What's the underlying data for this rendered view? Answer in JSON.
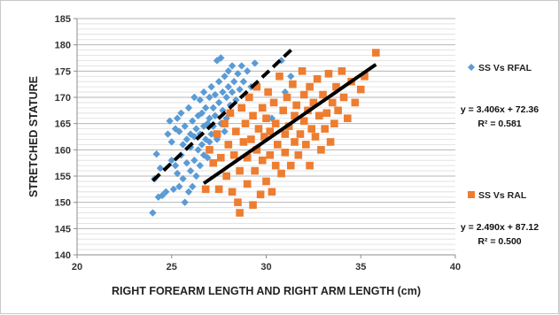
{
  "chart_data": {
    "type": "scatter",
    "xlabel": "RIGHT FOREARM LENGTH AND RIGHT ARM LENGTH (cm)",
    "ylabel": "STRETCHED STATURE",
    "xlim": [
      20,
      40
    ],
    "ylim": [
      140,
      185
    ],
    "x_ticks": [
      "20",
      "25",
      "30",
      "35",
      "40"
    ],
    "y_ticks": [
      "140",
      "145",
      "150",
      "155",
      "160",
      "165",
      "170",
      "175",
      "180",
      "185"
    ],
    "grid": "horizontal",
    "legend_position": "right",
    "series": [
      {
        "name": "SS Vs RFAL",
        "marker": "diamond",
        "color": "#5b9bd5",
        "trendline": {
          "slope": 3.406,
          "intercept": 72.36,
          "x_range": [
            24.0,
            31.5
          ],
          "style": "dashed",
          "color": "#000000"
        },
        "equation_label": "y = 3.406x + 72.36",
        "r2_label": "R² = 0.581",
        "points": [
          [
            24.0,
            148.0
          ],
          [
            24.1,
            154.5
          ],
          [
            24.2,
            159.2
          ],
          [
            24.3,
            151.0
          ],
          [
            24.4,
            156.5
          ],
          [
            24.5,
            151.3
          ],
          [
            24.7,
            152.0
          ],
          [
            24.8,
            163.0
          ],
          [
            24.9,
            165.5
          ],
          [
            25.0,
            158.0
          ],
          [
            25.0,
            161.5
          ],
          [
            25.1,
            152.5
          ],
          [
            25.2,
            164.0
          ],
          [
            25.2,
            157.0
          ],
          [
            25.3,
            166.0
          ],
          [
            25.3,
            155.5
          ],
          [
            25.4,
            153.0
          ],
          [
            25.4,
            163.5
          ],
          [
            25.5,
            159.0
          ],
          [
            25.5,
            167.0
          ],
          [
            25.6,
            154.5
          ],
          [
            25.6,
            161.0
          ],
          [
            25.7,
            150.0
          ],
          [
            25.7,
            164.5
          ],
          [
            25.8,
            157.5
          ],
          [
            25.8,
            162.0
          ],
          [
            25.9,
            152.0
          ],
          [
            25.9,
            168.0
          ],
          [
            26.0,
            156.0
          ],
          [
            26.0,
            160.5
          ],
          [
            26.0,
            163.0
          ],
          [
            26.1,
            153.0
          ],
          [
            26.1,
            165.5
          ],
          [
            26.2,
            158.0
          ],
          [
            26.2,
            162.5
          ],
          [
            26.2,
            170.0
          ],
          [
            26.3,
            155.0
          ],
          [
            26.3,
            164.0
          ],
          [
            26.4,
            160.0
          ],
          [
            26.4,
            166.5
          ],
          [
            26.5,
            157.0
          ],
          [
            26.5,
            163.0
          ],
          [
            26.5,
            169.5
          ],
          [
            26.6,
            161.0
          ],
          [
            26.6,
            167.0
          ],
          [
            26.7,
            159.0
          ],
          [
            26.7,
            164.5
          ],
          [
            26.7,
            171.0
          ],
          [
            26.8,
            162.0
          ],
          [
            26.8,
            168.0
          ],
          [
            26.9,
            165.0
          ],
          [
            26.9,
            158.5
          ],
          [
            27.0,
            161.5
          ],
          [
            27.0,
            170.0
          ],
          [
            27.0,
            166.0
          ],
          [
            27.1,
            163.0
          ],
          [
            27.1,
            172.0
          ],
          [
            27.2,
            168.0
          ],
          [
            27.2,
            164.5
          ],
          [
            27.3,
            170.5
          ],
          [
            27.3,
            166.5
          ],
          [
            27.4,
            162.0
          ],
          [
            27.4,
            177.0
          ],
          [
            27.5,
            173.0
          ],
          [
            27.5,
            169.0
          ],
          [
            27.6,
            177.5
          ],
          [
            27.6,
            165.0
          ],
          [
            27.7,
            171.0
          ],
          [
            27.7,
            167.5
          ],
          [
            27.8,
            163.5
          ],
          [
            27.8,
            174.0
          ],
          [
            27.9,
            170.0
          ],
          [
            27.9,
            166.0
          ],
          [
            28.0,
            172.0
          ],
          [
            28.0,
            175.0
          ],
          [
            28.1,
            168.5
          ],
          [
            28.2,
            171.0
          ],
          [
            28.2,
            176.0
          ],
          [
            28.3,
            173.0
          ],
          [
            28.4,
            169.5
          ],
          [
            28.5,
            174.5
          ],
          [
            28.6,
            171.5
          ],
          [
            28.7,
            176.0
          ],
          [
            28.8,
            173.0
          ],
          [
            29.0,
            175.0
          ],
          [
            29.2,
            172.0
          ],
          [
            29.4,
            176.5
          ],
          [
            30.3,
            166.0
          ],
          [
            30.8,
            177.0
          ],
          [
            31.0,
            171.0
          ],
          [
            31.3,
            174.0
          ]
        ]
      },
      {
        "name": "SS Vs RAL",
        "marker": "square",
        "color": "#ed7d31",
        "trendline": {
          "slope": 2.49,
          "intercept": 87.12,
          "x_range": [
            26.7,
            35.8
          ],
          "style": "solid",
          "color": "#000000"
        },
        "equation_label": "y = 2.490x + 87.12",
        "r2_label": "R² = 0.500",
        "points": [
          [
            26.8,
            152.5
          ],
          [
            27.0,
            160.0
          ],
          [
            27.2,
            157.5
          ],
          [
            27.4,
            163.0
          ],
          [
            27.5,
            152.5
          ],
          [
            27.6,
            158.5
          ],
          [
            27.8,
            165.0
          ],
          [
            27.9,
            155.0
          ],
          [
            28.0,
            161.0
          ],
          [
            28.1,
            167.0
          ],
          [
            28.2,
            152.0
          ],
          [
            28.3,
            159.0
          ],
          [
            28.4,
            163.5
          ],
          [
            28.5,
            150.0
          ],
          [
            28.6,
            148.0
          ],
          [
            28.6,
            156.0
          ],
          [
            28.7,
            168.0
          ],
          [
            28.8,
            161.5
          ],
          [
            28.9,
            165.0
          ],
          [
            29.0,
            153.5
          ],
          [
            29.0,
            158.5
          ],
          [
            29.1,
            170.0
          ],
          [
            29.2,
            162.0
          ],
          [
            29.3,
            149.5
          ],
          [
            29.3,
            166.5
          ],
          [
            29.4,
            156.0
          ],
          [
            29.5,
            160.0
          ],
          [
            29.5,
            172.0
          ],
          [
            29.6,
            164.0
          ],
          [
            29.7,
            151.5
          ],
          [
            29.8,
            158.0
          ],
          [
            29.8,
            168.0
          ],
          [
            29.9,
            162.5
          ],
          [
            30.0,
            154.0
          ],
          [
            30.0,
            166.0
          ],
          [
            30.1,
            171.0
          ],
          [
            30.2,
            159.0
          ],
          [
            30.2,
            163.5
          ],
          [
            30.3,
            152.0
          ],
          [
            30.4,
            169.0
          ],
          [
            30.5,
            157.0
          ],
          [
            30.5,
            165.0
          ],
          [
            30.6,
            161.0
          ],
          [
            30.7,
            174.0
          ],
          [
            30.8,
            155.5
          ],
          [
            30.9,
            167.5
          ],
          [
            31.0,
            163.0
          ],
          [
            31.0,
            159.5
          ],
          [
            31.1,
            170.0
          ],
          [
            31.2,
            164.5
          ],
          [
            31.3,
            157.0
          ],
          [
            31.4,
            172.5
          ],
          [
            31.5,
            161.5
          ],
          [
            31.5,
            166.5
          ],
          [
            31.6,
            168.5
          ],
          [
            31.7,
            159.0
          ],
          [
            31.8,
            163.0
          ],
          [
            31.9,
            175.0
          ],
          [
            32.0,
            165.5
          ],
          [
            32.0,
            170.5
          ],
          [
            32.1,
            161.0
          ],
          [
            32.2,
            167.5
          ],
          [
            32.3,
            157.0
          ],
          [
            32.3,
            172.0
          ],
          [
            32.4,
            164.0
          ],
          [
            32.5,
            169.0
          ],
          [
            32.6,
            162.5
          ],
          [
            32.7,
            173.5
          ],
          [
            32.8,
            166.5
          ],
          [
            32.9,
            160.0
          ],
          [
            33.0,
            170.5
          ],
          [
            33.1,
            164.0
          ],
          [
            33.2,
            167.0
          ],
          [
            33.3,
            174.5
          ],
          [
            33.4,
            161.5
          ],
          [
            33.5,
            169.0
          ],
          [
            33.6,
            165.0
          ],
          [
            33.7,
            172.0
          ],
          [
            33.8,
            167.5
          ],
          [
            34.0,
            175.0
          ],
          [
            34.1,
            170.0
          ],
          [
            34.3,
            166.0
          ],
          [
            34.5,
            173.0
          ],
          [
            34.7,
            169.0
          ],
          [
            35.0,
            171.5
          ],
          [
            35.2,
            174.0
          ],
          [
            35.8,
            178.5
          ]
        ]
      }
    ]
  }
}
